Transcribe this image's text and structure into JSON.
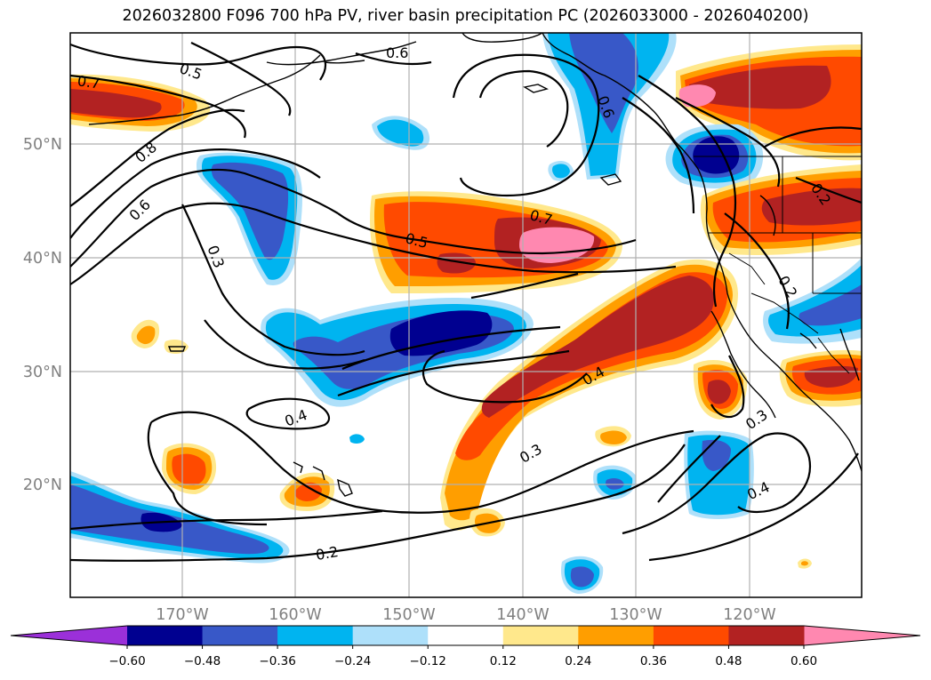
{
  "title": "2026032800 F096 700 hPa PV, river basin precipitation PC (2026033000 - 2026040200)",
  "map": {
    "lat_labels": [
      "50°N",
      "40°N",
      "30°N",
      "20°N"
    ],
    "lon_labels": [
      "170°W",
      "160°W",
      "150°W",
      "140°W",
      "130°W",
      "120°W"
    ],
    "contour_labels": [
      "0.7",
      "0.5",
      "0.8",
      "0.6",
      "0.3",
      "0.6",
      "0.7",
      "0.5",
      "0.6",
      "0.4",
      "0.3",
      "0.2",
      "0.4",
      "0.2",
      "0.3",
      "0.4",
      "0.2"
    ]
  },
  "colorbar": {
    "colors": [
      "#9b30d9",
      "#000090",
      "#3858c8",
      "#00b4f0",
      "#aee0fa",
      "#ffffff",
      "#ffe88c",
      "#ff9e00",
      "#ff4a00",
      "#b22222",
      "#ff88b0"
    ],
    "labels": [
      "−0.60",
      "−0.48",
      "−0.36",
      "−0.24",
      "−0.12",
      "0.12",
      "0.24",
      "0.36",
      "0.48",
      "0.60"
    ]
  }
}
